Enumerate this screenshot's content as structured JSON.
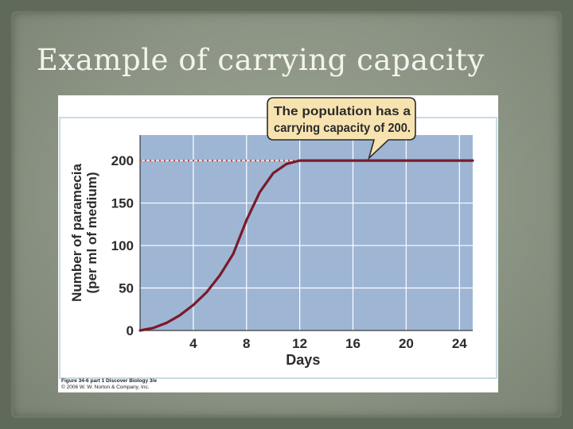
{
  "slide": {
    "title": "Example of carrying capacity"
  },
  "figure": {
    "caption_line1": "Figure 34-6 part 1  Discover Biology 3/e",
    "caption_line2": "© 2006 W. W. Norton & Company, Inc."
  },
  "colors": {
    "plot_bg": "#9eb6d4",
    "panel_frame": "#c9dbe6",
    "curve": "#7a1a2a",
    "capacity_line": "#c0504d",
    "callout_fill": "#f7e3b0"
  },
  "chart_data": {
    "type": "line",
    "title": "",
    "xlabel": "Days",
    "ylabel_line1": "Number of paramecia",
    "ylabel_line2": "(per ml of medium)",
    "xlim": [
      0,
      25
    ],
    "ylim": [
      0,
      230
    ],
    "x_ticks": [
      4,
      8,
      12,
      16,
      20,
      24
    ],
    "y_ticks": [
      0,
      50,
      100,
      150,
      200
    ],
    "grid": true,
    "series": [
      {
        "x": [
          0,
          1,
          2,
          3,
          4,
          5,
          6,
          7,
          8,
          9,
          10,
          11,
          12,
          13,
          14,
          16,
          18,
          20,
          22,
          24,
          25
        ],
        "y": [
          0,
          3,
          9,
          18,
          30,
          45,
          65,
          90,
          130,
          163,
          185,
          196,
          200,
          200,
          200,
          200,
          200,
          200,
          200,
          200,
          200
        ]
      }
    ],
    "carrying_capacity": 200,
    "annotation_line1": "The population has a",
    "annotation_line2": "carrying capacity of 200."
  }
}
